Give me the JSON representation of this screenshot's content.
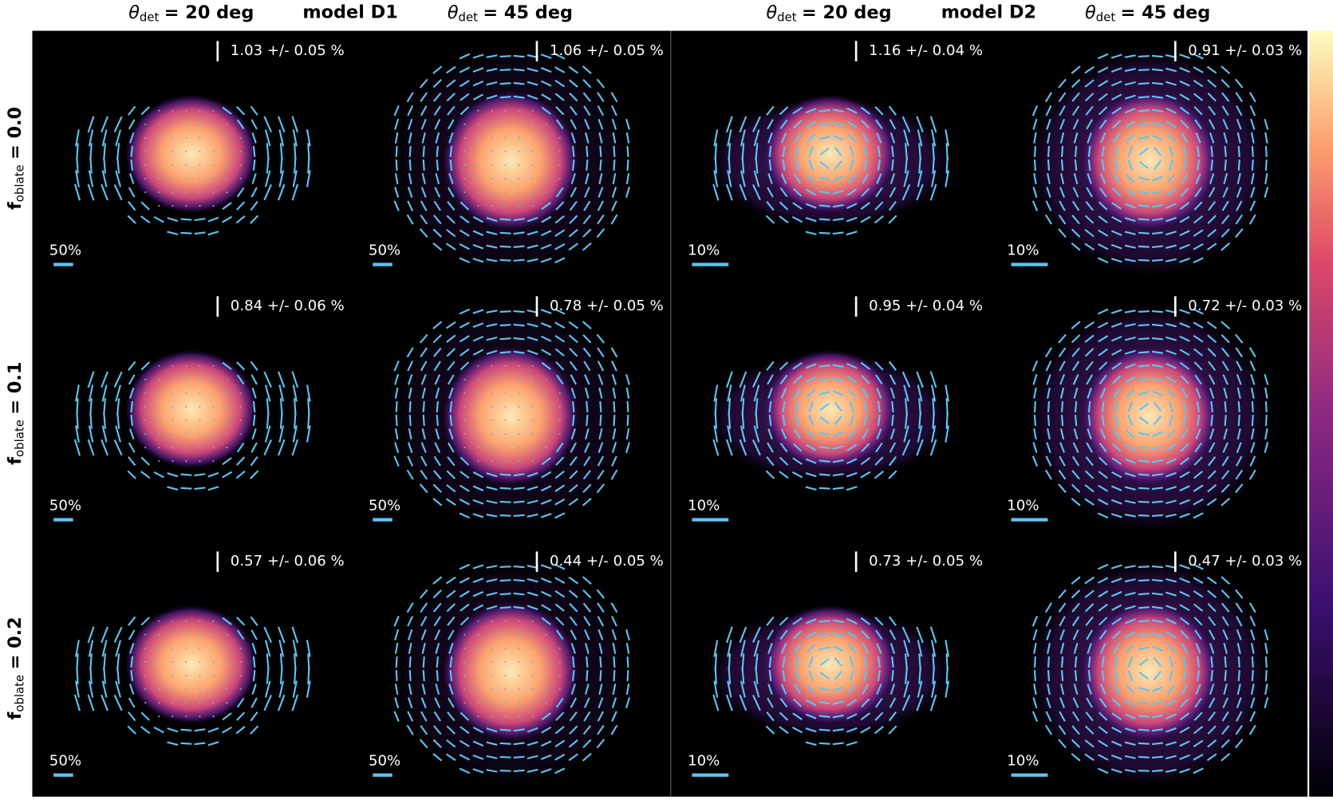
{
  "column_headers": [
    {
      "symbol": "θ",
      "sub": "det",
      "text": "= 20 deg"
    },
    {
      "symbol": "θ",
      "sub": "det",
      "text": "= 45 deg"
    },
    {
      "symbol": "θ",
      "sub": "det",
      "text": "= 20 deg"
    },
    {
      "symbol": "θ",
      "sub": "det",
      "text": "= 45 deg"
    }
  ],
  "models": [
    "model D1",
    "model D2"
  ],
  "row_labels": [
    {
      "symbol": "f",
      "sub": "oblate",
      "text": "= 0.0"
    },
    {
      "symbol": "f",
      "sub": "oblate",
      "text": "= 0.1"
    },
    {
      "symbol": "f",
      "sub": "oblate",
      "text": "= 0.2"
    }
  ],
  "panels": [
    [
      {
        "pol": "1.03 +/- 0.05 %",
        "scale": "50%"
      },
      {
        "pol": "1.06 +/- 0.05 %",
        "scale": "50%"
      },
      {
        "pol": "1.16 +/- 0.04 %",
        "scale": "10%"
      },
      {
        "pol": "0.91 +/- 0.03 %",
        "scale": "10%"
      }
    ],
    [
      {
        "pol": "0.84 +/- 0.06 %",
        "scale": "50%"
      },
      {
        "pol": "0.78 +/- 0.05 %",
        "scale": "50%"
      },
      {
        "pol": "0.95 +/- 0.04 %",
        "scale": "10%"
      },
      {
        "pol": "0.72 +/- 0.03 %",
        "scale": "10%"
      }
    ],
    [
      {
        "pol": "0.57 +/- 0.06 %",
        "scale": "50%"
      },
      {
        "pol": "0.44 +/- 0.05 %",
        "scale": "50%"
      },
      {
        "pol": "0.73 +/- 0.05 %",
        "scale": "10%"
      },
      {
        "pol": "0.47 +/- 0.03 %",
        "scale": "10%"
      }
    ]
  ]
}
